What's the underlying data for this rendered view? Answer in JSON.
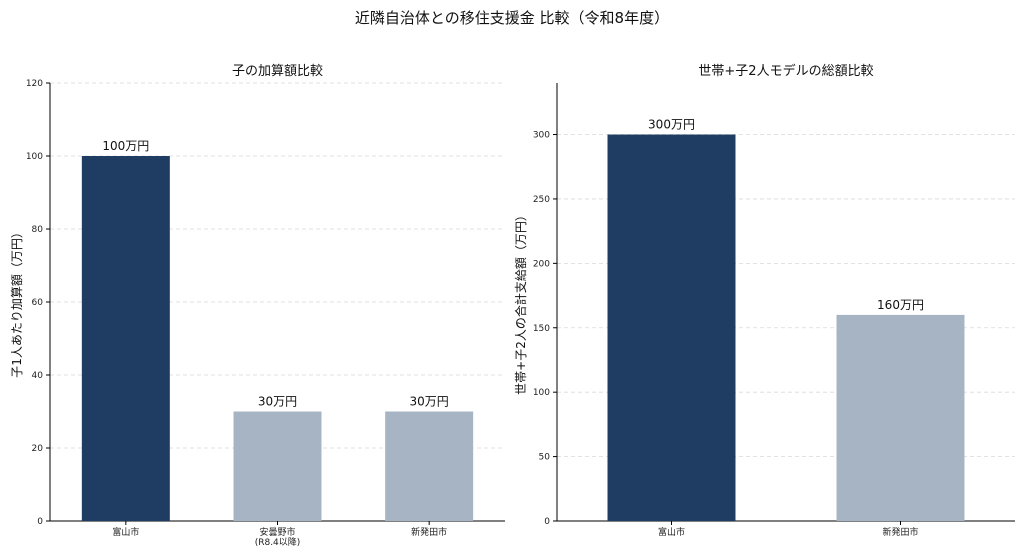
{
  "figure": {
    "title": "近隣自治体との移住支援金 比較（令和8年度）"
  },
  "chart_data": [
    {
      "type": "bar",
      "title": "子の加算額比較",
      "xlabel": "",
      "ylabel": "子1人あたり加算額（万円）",
      "categories": [
        [
          "富山市"
        ],
        [
          "安曇野市",
          "(R8.4以降)"
        ],
        [
          "新発田市"
        ]
      ],
      "values": [
        100,
        30,
        30
      ],
      "data_labels": [
        "100万円",
        "30万円",
        "30万円"
      ],
      "colors": [
        "#1f3d63",
        "#a7b4c4",
        "#a7b4c4"
      ],
      "ylim": [
        0,
        120
      ],
      "yticks": [
        0,
        20,
        40,
        60,
        80,
        100,
        120
      ],
      "grid": "y-dashed",
      "legend": "none"
    },
    {
      "type": "bar",
      "title": "世帯+子2人モデルの総額比較",
      "xlabel": "",
      "ylabel": "世帯+子2人の合計支給額（万円）",
      "categories": [
        [
          "富山市"
        ],
        [
          "新発田市"
        ]
      ],
      "values": [
        300,
        160
      ],
      "data_labels": [
        "300万円",
        "160万円"
      ],
      "colors": [
        "#1f3d63",
        "#a7b4c4"
      ],
      "ylim": [
        0,
        340
      ],
      "yticks": [
        0,
        50,
        100,
        150,
        200,
        250,
        300
      ],
      "grid": "y-dashed",
      "legend": "none"
    }
  ]
}
